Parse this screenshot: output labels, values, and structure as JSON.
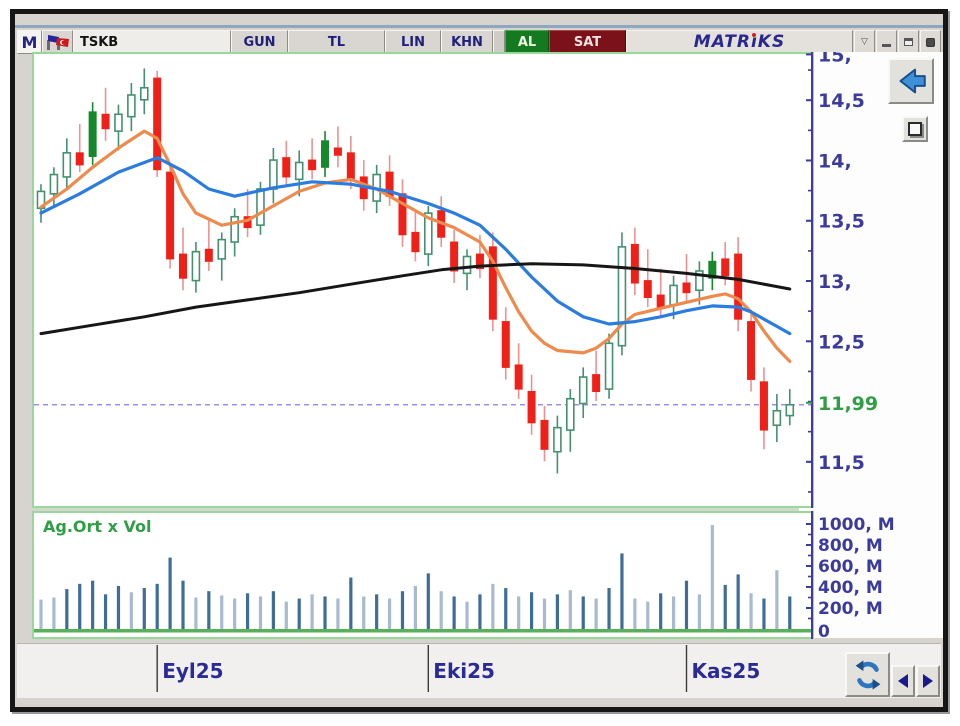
{
  "toolbar": {
    "m_logo": "M",
    "symbol": "TSKB",
    "buttons": [
      {
        "label": "GUN"
      },
      {
        "label": "TL"
      },
      {
        "label": "LIN"
      },
      {
        "label": "KHN"
      }
    ],
    "buy_label": "AL",
    "sell_label": "SAT",
    "brand": {
      "pre": "MATR",
      "i": "ı",
      "post": "KS"
    },
    "icons": {
      "flag": "crossed-flags-icon",
      "dropdown": "▽",
      "minimize": "css-bar",
      "maximize": "css-box",
      "close": "css-filled-box"
    },
    "colors": {
      "buy_bg": "#157a1f",
      "sell_bg": "#7c1219",
      "brand": "#28288e"
    }
  },
  "side_controls": {
    "back_arrow": "left-arrow-icon",
    "box_button": "small-box-icon",
    "refresh": "sync-arrows-icon",
    "scroll_left": "left-triangle-icon",
    "scroll_right": "right-triangle-icon"
  },
  "volume": {
    "title": "Ag.Ort x Vol",
    "unit": "M",
    "zero_label": "0"
  },
  "chart_data": {
    "type": "candlestick+volume",
    "symbol": "TSKB",
    "period": "GUN",
    "currency": "TL",
    "scale": "LIN",
    "last_price": 11.99,
    "last_price_label": "11,99",
    "last_price_color": "#2f9e46",
    "y_range": [
      11.15,
      14.9
    ],
    "price_ticks": [
      {
        "label": "15,",
        "price": 14.88
      },
      {
        "label": "14,5",
        "price": 14.5
      },
      {
        "label": "14,",
        "price": 14.0
      },
      {
        "label": "13,5",
        "price": 13.5
      },
      {
        "label": "13,",
        "price": 13.0
      },
      {
        "label": "12,5",
        "price": 12.5
      },
      {
        "label": "11,5",
        "price": 11.5
      }
    ],
    "minor_tick_step": 0.25,
    "x_ticks": [
      {
        "label": "Eyl25",
        "index": 9
      },
      {
        "label": "Eki25",
        "index": 30
      },
      {
        "label": "Kas25",
        "index": 50
      }
    ],
    "candles": [
      [
        13.62,
        13.82,
        13.5,
        13.76,
        "g"
      ],
      [
        13.74,
        13.96,
        13.62,
        13.9,
        "g"
      ],
      [
        13.88,
        14.2,
        13.78,
        14.08,
        "g"
      ],
      [
        14.08,
        14.32,
        13.92,
        13.98,
        "r"
      ],
      [
        14.05,
        14.5,
        13.98,
        14.42,
        "G"
      ],
      [
        14.4,
        14.62,
        14.18,
        14.28,
        "r"
      ],
      [
        14.26,
        14.48,
        14.1,
        14.4,
        "g"
      ],
      [
        14.38,
        14.66,
        14.26,
        14.56,
        "g"
      ],
      [
        14.52,
        14.78,
        14.4,
        14.62,
        "g"
      ],
      [
        14.7,
        14.76,
        13.88,
        13.94,
        "r"
      ],
      [
        13.92,
        14.0,
        13.12,
        13.2,
        "r"
      ],
      [
        13.24,
        13.46,
        12.94,
        13.04,
        "r"
      ],
      [
        13.02,
        13.34,
        12.92,
        13.26,
        "g"
      ],
      [
        13.28,
        13.52,
        13.1,
        13.18,
        "r"
      ],
      [
        13.2,
        13.42,
        13.02,
        13.36,
        "g"
      ],
      [
        13.34,
        13.62,
        13.22,
        13.55,
        "g"
      ],
      [
        13.55,
        13.78,
        13.38,
        13.46,
        "r"
      ],
      [
        13.48,
        13.84,
        13.4,
        13.78,
        "g"
      ],
      [
        13.78,
        14.12,
        13.66,
        14.02,
        "g"
      ],
      [
        14.04,
        14.18,
        13.8,
        13.88,
        "r"
      ],
      [
        13.86,
        14.1,
        13.72,
        14.0,
        "g"
      ],
      [
        14.02,
        14.2,
        13.86,
        13.94,
        "r"
      ],
      [
        13.96,
        14.26,
        13.88,
        14.18,
        "G"
      ],
      [
        14.12,
        14.3,
        13.96,
        14.06,
        "r"
      ],
      [
        14.08,
        14.22,
        13.78,
        13.86,
        "r"
      ],
      [
        13.88,
        14.02,
        13.6,
        13.7,
        "r"
      ],
      [
        13.68,
        13.98,
        13.58,
        13.9,
        "g"
      ],
      [
        13.92,
        14.06,
        13.64,
        13.72,
        "r"
      ],
      [
        13.74,
        13.86,
        13.3,
        13.4,
        "r"
      ],
      [
        13.42,
        13.6,
        13.18,
        13.26,
        "r"
      ],
      [
        13.24,
        13.64,
        13.14,
        13.58,
        "g"
      ],
      [
        13.6,
        13.72,
        13.3,
        13.38,
        "r"
      ],
      [
        13.34,
        13.44,
        13.0,
        13.1,
        "r"
      ],
      [
        13.08,
        13.28,
        12.94,
        13.22,
        "g"
      ],
      [
        13.24,
        13.4,
        13.04,
        13.12,
        "r"
      ],
      [
        13.3,
        13.42,
        12.6,
        12.7,
        "r"
      ],
      [
        12.68,
        12.8,
        12.2,
        12.3,
        "r"
      ],
      [
        12.32,
        12.5,
        12.04,
        12.12,
        "r"
      ],
      [
        12.1,
        12.24,
        11.74,
        11.84,
        "r"
      ],
      [
        11.86,
        11.98,
        11.52,
        11.62,
        "r"
      ],
      [
        11.6,
        11.9,
        11.42,
        11.8,
        "g"
      ],
      [
        11.78,
        12.12,
        11.6,
        12.04,
        "g"
      ],
      [
        12.0,
        12.3,
        11.88,
        12.22,
        "g"
      ],
      [
        12.24,
        12.44,
        12.02,
        12.1,
        "r"
      ],
      [
        12.12,
        12.58,
        12.04,
        12.5,
        "g"
      ],
      [
        12.48,
        13.42,
        12.4,
        13.3,
        "g"
      ],
      [
        13.32,
        13.46,
        12.9,
        13.0,
        "r"
      ],
      [
        13.02,
        13.28,
        12.8,
        12.88,
        "r"
      ],
      [
        12.9,
        13.12,
        12.72,
        12.8,
        "r"
      ],
      [
        12.82,
        13.06,
        12.7,
        12.98,
        "g"
      ],
      [
        13.0,
        13.24,
        12.84,
        12.92,
        "r"
      ],
      [
        12.94,
        13.18,
        12.82,
        13.1,
        "g"
      ],
      [
        13.04,
        13.26,
        12.94,
        13.18,
        "G"
      ],
      [
        13.2,
        13.34,
        12.98,
        13.06,
        "r"
      ],
      [
        13.24,
        13.38,
        12.6,
        12.7,
        "r"
      ],
      [
        12.68,
        12.78,
        12.1,
        12.2,
        "r"
      ],
      [
        12.18,
        12.3,
        11.62,
        11.78,
        "r"
      ],
      [
        11.82,
        12.08,
        11.68,
        11.94,
        "g"
      ],
      [
        11.9,
        12.12,
        11.82,
        11.99,
        "g"
      ]
    ],
    "overlays": {
      "ma_orange": {
        "color": "#ef8a4d",
        "points": [
          [
            0,
            13.63
          ],
          [
            2,
            13.78
          ],
          [
            4,
            13.96
          ],
          [
            6,
            14.12
          ],
          [
            8,
            14.26
          ],
          [
            9,
            14.2
          ],
          [
            10,
            13.98
          ],
          [
            11,
            13.74
          ],
          [
            12,
            13.58
          ],
          [
            14,
            13.48
          ],
          [
            16,
            13.52
          ],
          [
            18,
            13.64
          ],
          [
            20,
            13.76
          ],
          [
            22,
            13.83
          ],
          [
            24,
            13.86
          ],
          [
            26,
            13.78
          ],
          [
            28,
            13.66
          ],
          [
            30,
            13.54
          ],
          [
            32,
            13.46
          ],
          [
            34,
            13.34
          ],
          [
            35,
            13.18
          ],
          [
            36,
            12.96
          ],
          [
            37,
            12.76
          ],
          [
            38,
            12.6
          ],
          [
            39,
            12.5
          ],
          [
            40,
            12.44
          ],
          [
            42,
            12.42
          ],
          [
            43,
            12.46
          ],
          [
            44,
            12.54
          ],
          [
            45,
            12.66
          ],
          [
            46,
            12.74
          ],
          [
            48,
            12.79
          ],
          [
            50,
            12.84
          ],
          [
            52,
            12.89
          ],
          [
            53,
            12.91
          ],
          [
            54,
            12.87
          ],
          [
            55,
            12.76
          ],
          [
            56,
            12.6
          ],
          [
            57,
            12.46
          ],
          [
            58,
            12.35
          ]
        ]
      },
      "ma_blue": {
        "color": "#2b7ce0",
        "points": [
          [
            0,
            13.58
          ],
          [
            3,
            13.74
          ],
          [
            6,
            13.92
          ],
          [
            9,
            14.04
          ],
          [
            11,
            13.93
          ],
          [
            13,
            13.78
          ],
          [
            15,
            13.72
          ],
          [
            18,
            13.79
          ],
          [
            21,
            13.84
          ],
          [
            24,
            13.82
          ],
          [
            27,
            13.76
          ],
          [
            30,
            13.66
          ],
          [
            32,
            13.58
          ],
          [
            34,
            13.48
          ],
          [
            36,
            13.28
          ],
          [
            38,
            13.05
          ],
          [
            40,
            12.85
          ],
          [
            42,
            12.72
          ],
          [
            44,
            12.66
          ],
          [
            46,
            12.68
          ],
          [
            48,
            12.72
          ],
          [
            50,
            12.77
          ],
          [
            52,
            12.81
          ],
          [
            54,
            12.8
          ],
          [
            55,
            12.76
          ],
          [
            56,
            12.7
          ],
          [
            57,
            12.64
          ],
          [
            58,
            12.58
          ]
        ]
      },
      "ma_black": {
        "color": "#161616",
        "points": [
          [
            0,
            12.58
          ],
          [
            4,
            12.65
          ],
          [
            8,
            12.72
          ],
          [
            12,
            12.8
          ],
          [
            16,
            12.86
          ],
          [
            20,
            12.92
          ],
          [
            24,
            12.99
          ],
          [
            28,
            13.06
          ],
          [
            31,
            13.11
          ],
          [
            34,
            13.14
          ],
          [
            38,
            13.16
          ],
          [
            42,
            13.15
          ],
          [
            46,
            13.12
          ],
          [
            50,
            13.08
          ],
          [
            54,
            13.03
          ],
          [
            58,
            12.95
          ]
        ]
      }
    },
    "last_price_line": {
      "value": 11.99,
      "style": "dashed",
      "color": "#9a90e8"
    },
    "volume_series": {
      "title": "Ag.Ort x Vol",
      "unit": "M",
      "range": [
        0,
        1050
      ],
      "ticks": [
        1000,
        800,
        600,
        400,
        200
      ],
      "minor_tick_step": 100,
      "values": [
        [
          280,
          "l"
        ],
        [
          300,
          "l"
        ],
        [
          380,
          "d"
        ],
        [
          430,
          "d"
        ],
        [
          460,
          "d"
        ],
        [
          330,
          "d"
        ],
        [
          410,
          "d"
        ],
        [
          350,
          "l"
        ],
        [
          390,
          "d"
        ],
        [
          430,
          "d"
        ],
        [
          680,
          "d"
        ],
        [
          460,
          "d"
        ],
        [
          300,
          "l"
        ],
        [
          360,
          "d"
        ],
        [
          320,
          "l"
        ],
        [
          290,
          "l"
        ],
        [
          340,
          "d"
        ],
        [
          310,
          "l"
        ],
        [
          360,
          "d"
        ],
        [
          260,
          "l"
        ],
        [
          290,
          "d"
        ],
        [
          330,
          "l"
        ],
        [
          310,
          "d"
        ],
        [
          290,
          "l"
        ],
        [
          490,
          "d"
        ],
        [
          310,
          "l"
        ],
        [
          330,
          "d"
        ],
        [
          290,
          "l"
        ],
        [
          360,
          "d"
        ],
        [
          410,
          "l"
        ],
        [
          530,
          "d"
        ],
        [
          360,
          "l"
        ],
        [
          310,
          "d"
        ],
        [
          260,
          "l"
        ],
        [
          330,
          "d"
        ],
        [
          430,
          "l"
        ],
        [
          390,
          "d"
        ],
        [
          310,
          "l"
        ],
        [
          350,
          "d"
        ],
        [
          290,
          "l"
        ],
        [
          330,
          "d"
        ],
        [
          370,
          "l"
        ],
        [
          310,
          "d"
        ],
        [
          290,
          "l"
        ],
        [
          390,
          "d"
        ],
        [
          720,
          "d"
        ],
        [
          290,
          "l"
        ],
        [
          260,
          "l"
        ],
        [
          340,
          "d"
        ],
        [
          310,
          "l"
        ],
        [
          460,
          "d"
        ],
        [
          330,
          "l"
        ],
        [
          990,
          "l"
        ],
        [
          420,
          "d"
        ],
        [
          520,
          "d"
        ],
        [
          340,
          "l"
        ],
        [
          290,
          "d"
        ],
        [
          560,
          "l"
        ],
        [
          310,
          "d"
        ]
      ],
      "bar_colors": {
        "d": "#3d6d98",
        "l": "#a7bad2"
      },
      "baseline_color": "#58b058"
    },
    "candle_colors": {
      "down": "#ee2018",
      "down_wick": "#f09090",
      "up_hollow": "#43916f",
      "up_solid": "#17882c"
    }
  }
}
